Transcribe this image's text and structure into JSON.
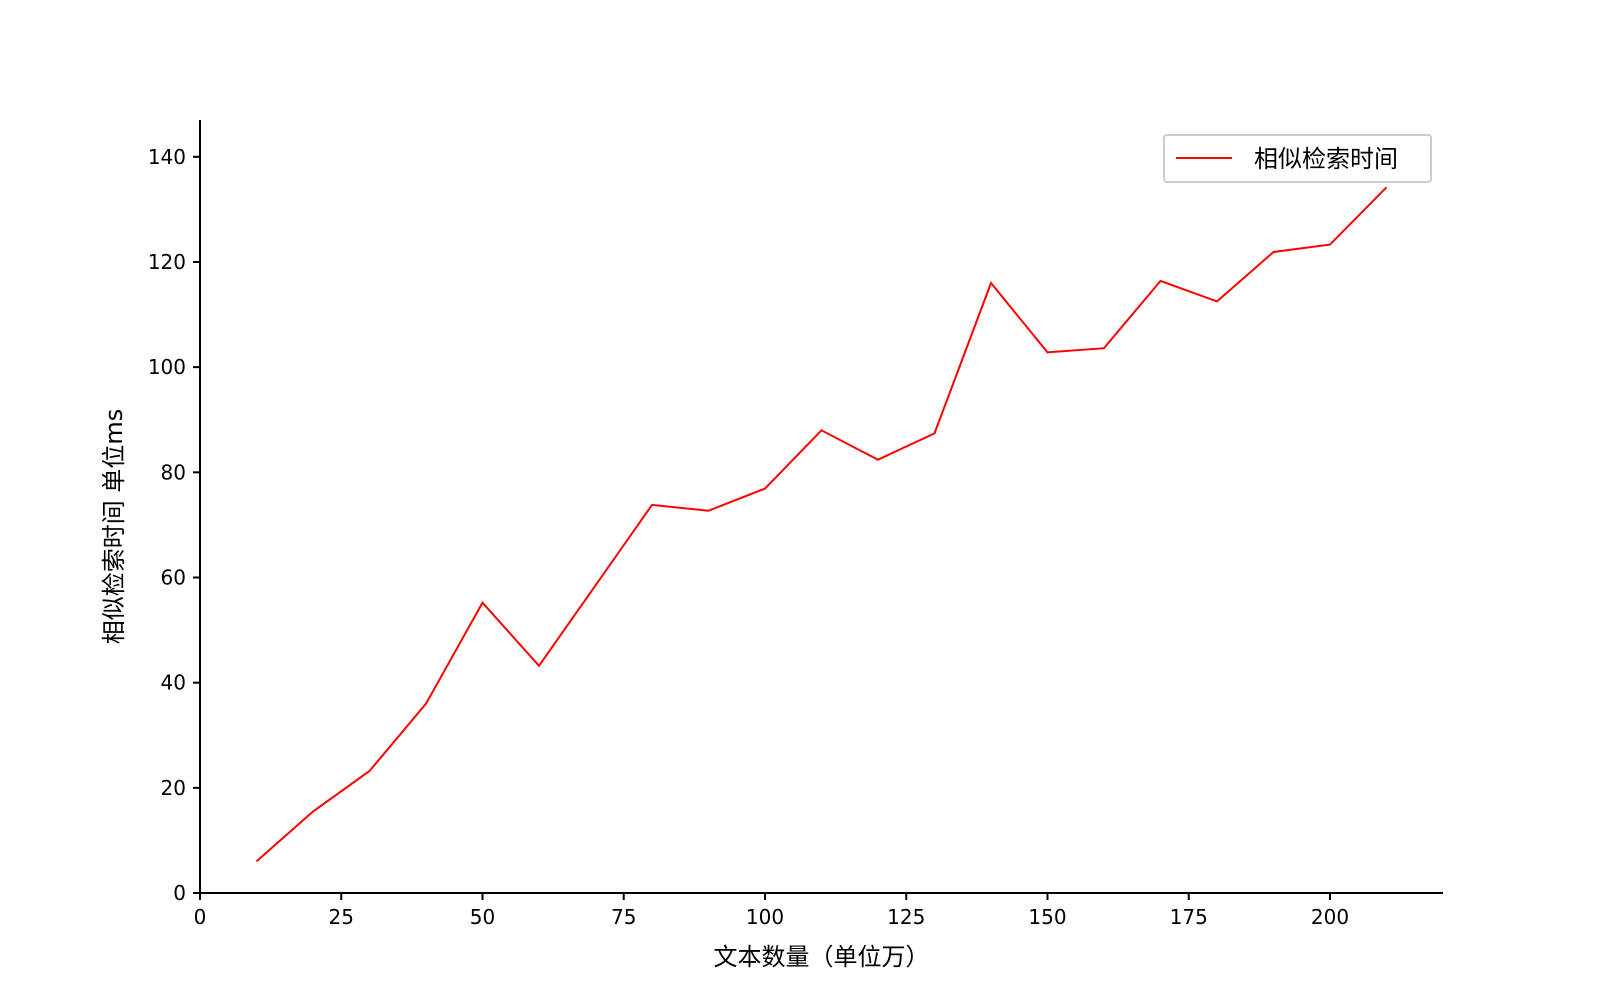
{
  "chart_data": {
    "type": "line",
    "title": "",
    "xlabel": "文本数量（单位万）",
    "ylabel": "相似检索时间 单位ms",
    "xlim": [
      0,
      220
    ],
    "ylim": [
      0,
      147
    ],
    "xticks": [
      0,
      25,
      50,
      75,
      100,
      125,
      150,
      175,
      200
    ],
    "yticks": [
      0,
      20,
      40,
      60,
      80,
      100,
      120,
      140
    ],
    "grid": false,
    "legend_position": "top-right",
    "series": [
      {
        "name": "相似检索时间",
        "color": "#ff0000",
        "x": [
          10,
          20,
          30,
          40,
          50,
          60,
          70,
          80,
          90,
          100,
          110,
          120,
          130,
          140,
          150,
          160,
          170,
          180,
          190,
          200,
          210
        ],
        "y": [
          6,
          15.5,
          23.2,
          36,
          55.2,
          43.2,
          58.5,
          73.8,
          72.7,
          76.9,
          88,
          82.4,
          87.4,
          116,
          102.8,
          103.6,
          116.4,
          112.5,
          121.9,
          123.3,
          134.2
        ]
      }
    ]
  }
}
